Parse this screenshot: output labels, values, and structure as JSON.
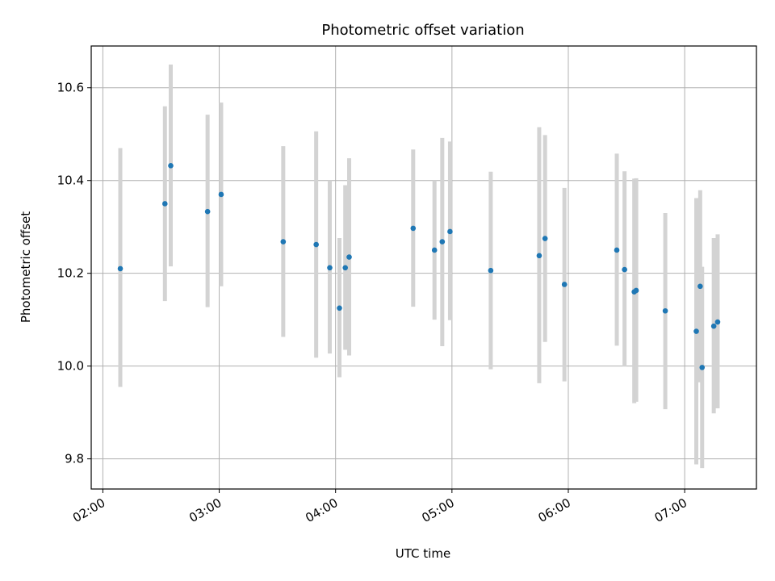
{
  "chart_data": {
    "type": "scatter",
    "title": "Photometric offset variation",
    "xlabel": "UTC time",
    "ylabel": "Photometric offset",
    "xlim": [
      "01:54",
      "07:37"
    ],
    "ylim": [
      9.735,
      10.69
    ],
    "grid": true,
    "x_ticks": [
      "02:00",
      "03:00",
      "04:00",
      "05:00",
      "06:00",
      "07:00"
    ],
    "y_ticks": [
      "9.8",
      "10.0",
      "10.2",
      "10.4",
      "10.6"
    ],
    "point_color": "#1f77b4",
    "errorbar_color": "#d3d3d3",
    "points": [
      {
        "t": "02:09",
        "y": 10.21,
        "lo": 9.955,
        "hi": 10.47
      },
      {
        "t": "02:32",
        "y": 10.35,
        "lo": 10.14,
        "hi": 10.56
      },
      {
        "t": "02:35",
        "y": 10.432,
        "lo": 10.215,
        "hi": 10.65
      },
      {
        "t": "02:54",
        "y": 10.333,
        "lo": 10.127,
        "hi": 10.542
      },
      {
        "t": "03:01",
        "y": 10.37,
        "lo": 10.172,
        "hi": 10.568
      },
      {
        "t": "03:33",
        "y": 10.268,
        "lo": 10.063,
        "hi": 10.474
      },
      {
        "t": "03:50",
        "y": 10.262,
        "lo": 10.018,
        "hi": 10.506
      },
      {
        "t": "03:57",
        "y": 10.212,
        "lo": 10.027,
        "hi": 10.4
      },
      {
        "t": "04:02",
        "y": 10.125,
        "lo": 9.976,
        "hi": 10.276
      },
      {
        "t": "04:05",
        "y": 10.212,
        "lo": 10.035,
        "hi": 10.39
      },
      {
        "t": "04:07",
        "y": 10.235,
        "lo": 10.023,
        "hi": 10.448
      },
      {
        "t": "04:40",
        "y": 10.297,
        "lo": 10.128,
        "hi": 10.467
      },
      {
        "t": "04:51",
        "y": 10.25,
        "lo": 10.1,
        "hi": 10.4
      },
      {
        "t": "04:55",
        "y": 10.268,
        "lo": 10.043,
        "hi": 10.492
      },
      {
        "t": "04:59",
        "y": 10.29,
        "lo": 10.099,
        "hi": 10.484
      },
      {
        "t": "05:20",
        "y": 10.206,
        "lo": 9.993,
        "hi": 10.419
      },
      {
        "t": "05:45",
        "y": 10.238,
        "lo": 9.963,
        "hi": 10.515
      },
      {
        "t": "05:48",
        "y": 10.275,
        "lo": 10.052,
        "hi": 10.498
      },
      {
        "t": "05:58",
        "y": 10.176,
        "lo": 9.967,
        "hi": 10.384
      },
      {
        "t": "06:25",
        "y": 10.25,
        "lo": 10.044,
        "hi": 10.458
      },
      {
        "t": "06:29",
        "y": 10.208,
        "lo": 9.999,
        "hi": 10.42
      },
      {
        "t": "06:34",
        "y": 10.16,
        "lo": 9.92,
        "hi": 10.404
      },
      {
        "t": "06:35",
        "y": 10.163,
        "lo": 9.923,
        "hi": 10.405
      },
      {
        "t": "06:50",
        "y": 10.119,
        "lo": 9.907,
        "hi": 10.33
      },
      {
        "t": "07:06",
        "y": 10.075,
        "lo": 9.788,
        "hi": 10.362
      },
      {
        "t": "07:08",
        "y": 10.172,
        "lo": 9.965,
        "hi": 10.379
      },
      {
        "t": "07:09",
        "y": 9.997,
        "lo": 9.78,
        "hi": 10.214
      },
      {
        "t": "07:15",
        "y": 10.086,
        "lo": 9.898,
        "hi": 10.276
      },
      {
        "t": "07:17",
        "y": 10.095,
        "lo": 9.909,
        "hi": 10.284
      }
    ]
  }
}
